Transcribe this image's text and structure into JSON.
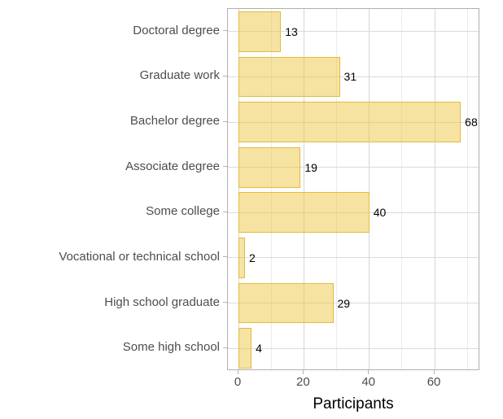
{
  "chart_data": {
    "type": "bar",
    "orientation": "horizontal",
    "title": "",
    "xlabel": "Participants",
    "ylabel": "",
    "categories": [
      "Doctoral degree",
      "Graduate work",
      "Bachelor degree",
      "Associate degree",
      "Some college",
      "Vocational or technical school",
      "High school graduate",
      "Some high school"
    ],
    "values": [
      13,
      31,
      68,
      19,
      40,
      2,
      29,
      4
    ],
    "value_labels": [
      "13",
      "31",
      "68",
      "19",
      "40",
      "2",
      "29",
      "4"
    ],
    "xticks": [
      0,
      20,
      40,
      60
    ],
    "xtick_labels": [
      "0",
      "20",
      "40",
      "60"
    ],
    "xticks_minor": [
      10,
      30,
      50,
      70
    ],
    "xlim": [
      0,
      74
    ],
    "grid": "on",
    "legend": "none",
    "colors": {
      "bar_fill": "#f6e3a1",
      "bar_border": "#e2bb3f",
      "grid_major": "#d6d6d6",
      "grid_minor": "#ebebeb",
      "panel_border": "#b0b0b0",
      "axis_text": "#4d4d4d",
      "value_label": "#000000",
      "axis_title": "#000000"
    }
  }
}
